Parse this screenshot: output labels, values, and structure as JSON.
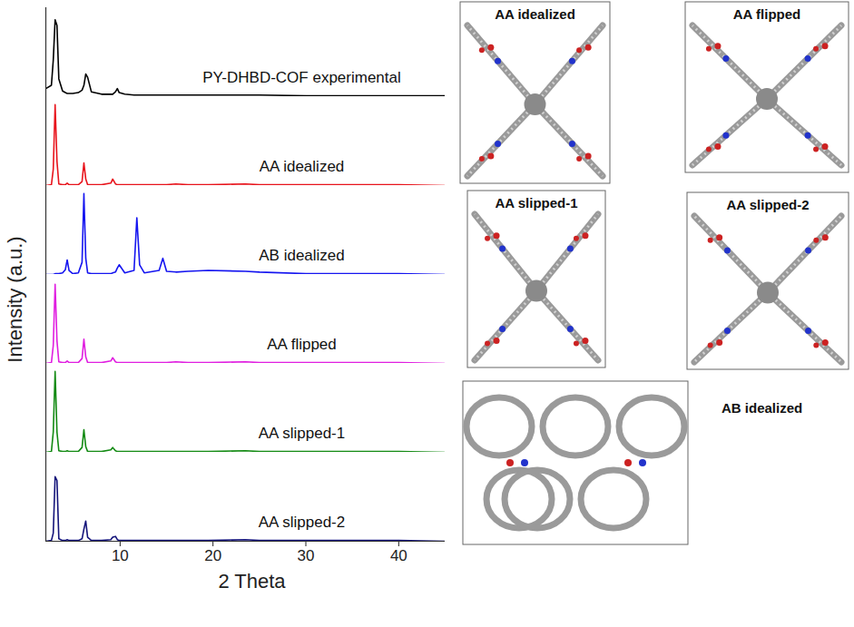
{
  "chart_data": {
    "type": "line",
    "xlabel": "2 Theta",
    "ylabel": "Intensity (a.u.)",
    "xlim": [
      2,
      45
    ],
    "xticks": [
      10,
      20,
      30,
      40
    ],
    "ylim": [
      0,
      110
    ],
    "yticks": [],
    "tick_labels": "x",
    "grid": false,
    "x": [
      2,
      2.6,
      2.8,
      3.0,
      3.2,
      3.4,
      3.8,
      4.1,
      4.3,
      4.5,
      4.9,
      5.5,
      5.9,
      6.1,
      6.3,
      6.5,
      6.9,
      8.0,
      9.0,
      9.2,
      9.5,
      9.7,
      9.9,
      10.5,
      11.5,
      11.8,
      12.1,
      12.6,
      14.2,
      14.6,
      15.0,
      16.0,
      17.3,
      19.5,
      23.5,
      25.0,
      30.0,
      35.0,
      40.0,
      45.0
    ],
    "series": [
      {
        "name": "PY-DHBD-COF experimental",
        "color": "#000000",
        "values": [
          10,
          14,
          45,
          95,
          88,
          22,
          7,
          5,
          4,
          4,
          4,
          5,
          8,
          14,
          28,
          24,
          6,
          3,
          3,
          3,
          6,
          10,
          5,
          3,
          2,
          2,
          2,
          2,
          2,
          2,
          2,
          2,
          2,
          2,
          2,
          2,
          1,
          1,
          1,
          1
        ]
      },
      {
        "name": "AA idealized",
        "color": "#e8141c",
        "values": [
          0,
          1,
          20,
          100,
          30,
          2,
          1,
          1,
          3,
          1,
          1,
          1,
          5,
          28,
          8,
          1,
          1,
          1,
          3,
          8,
          2,
          1,
          1,
          1,
          1,
          1,
          1,
          1,
          1,
          1,
          1,
          2,
          1,
          1,
          2,
          1,
          1,
          1,
          1,
          0
        ]
      },
      {
        "name": "AB idealized",
        "color": "#1515f0",
        "values": [
          0,
          0,
          0,
          1,
          1,
          1,
          2,
          6,
          18,
          5,
          1,
          2,
          15,
          100,
          20,
          2,
          1,
          1,
          1,
          2,
          3,
          8,
          12,
          2,
          5,
          70,
          12,
          2,
          5,
          20,
          4,
          3,
          4,
          5,
          4,
          3,
          1,
          1,
          1,
          0
        ]
      },
      {
        "name": "AA flipped",
        "color": "#e01ee0",
        "values": [
          0,
          1,
          22,
          98,
          28,
          2,
          1,
          1,
          3,
          1,
          1,
          1,
          6,
          30,
          8,
          1,
          1,
          1,
          3,
          7,
          2,
          1,
          1,
          1,
          1,
          1,
          1,
          1,
          1,
          1,
          1,
          2,
          1,
          1,
          2,
          1,
          1,
          1,
          1,
          0
        ]
      },
      {
        "name": "AA slipped-1",
        "color": "#138a13",
        "values": [
          0,
          1,
          25,
          100,
          25,
          2,
          1,
          1,
          2,
          1,
          1,
          1,
          6,
          28,
          7,
          1,
          1,
          1,
          3,
          6,
          2,
          1,
          1,
          1,
          1,
          1,
          1,
          1,
          1,
          1,
          1,
          1,
          1,
          1,
          2,
          1,
          1,
          1,
          1,
          0
        ]
      },
      {
        "name": "AA slipped-2",
        "color": "#14147a",
        "values": [
          0,
          1,
          10,
          80,
          75,
          3,
          1,
          1,
          2,
          1,
          1,
          1,
          3,
          15,
          25,
          5,
          1,
          1,
          2,
          5,
          6,
          2,
          1,
          1,
          1,
          1,
          1,
          1,
          1,
          1,
          1,
          1,
          1,
          1,
          2,
          1,
          1,
          1,
          1,
          0
        ]
      }
    ]
  },
  "panels": [
    "AA idealized",
    "AA flipped",
    "AA slipped-1",
    "AA slipped-2",
    "AB idealized"
  ]
}
